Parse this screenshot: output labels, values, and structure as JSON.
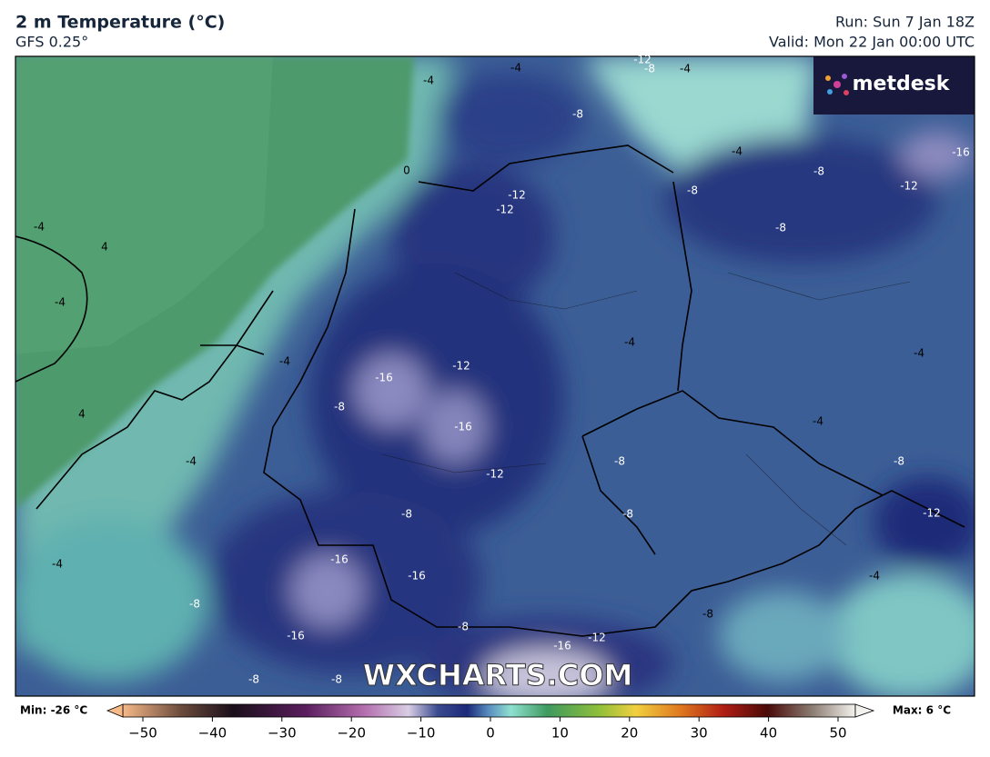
{
  "header": {
    "title": "2 m Temperature (°C)",
    "subtitle": "GFS 0.25°",
    "run": "Run: Sun 7 Jan 18Z",
    "valid": "Valid: Mon 22 Jan 00:00 UTC"
  },
  "logo": "metdesk",
  "watermark": "WXCHARTS.COM",
  "contour_labels": [
    0,
    -4,
    4,
    -4,
    4,
    -4,
    -4,
    -8,
    -8,
    -16,
    -16,
    -8,
    -16,
    -8,
    -12,
    -16,
    -16,
    -12,
    -8,
    -4,
    -12,
    -12,
    -4,
    -4,
    -8,
    -12,
    -4,
    -8,
    -4,
    -8,
    -8,
    -8,
    -12,
    -16,
    -4,
    -4,
    -4,
    -8,
    -8,
    -8,
    -12,
    -4,
    -8,
    -12,
    -16,
    -8
  ],
  "colorbar": {
    "min_label": "Min: -26 °C",
    "max_label": "Max: 6 °C",
    "ticks": [
      {
        "value": -50,
        "label": "−50"
      },
      {
        "value": -40,
        "label": "−40"
      },
      {
        "value": -30,
        "label": "−30"
      },
      {
        "value": -20,
        "label": "−20"
      },
      {
        "value": -10,
        "label": "−10"
      },
      0,
      10,
      20,
      30,
      40,
      50
    ]
  }
}
